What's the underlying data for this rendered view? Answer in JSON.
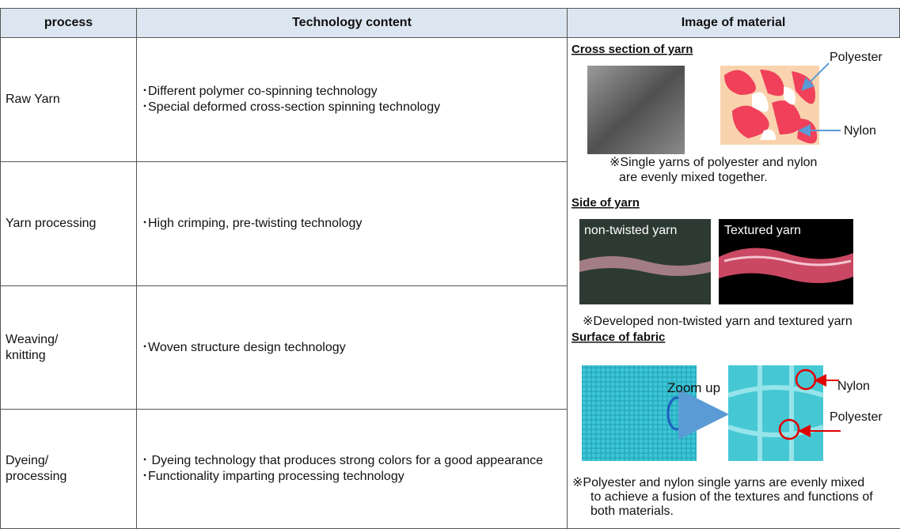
{
  "table": {
    "header": [
      "process",
      "Technology content",
      "Image of material"
    ],
    "rows": [
      {
        "process": [
          "Raw Yarn"
        ],
        "content": [
          "･Different polymer co-spinning technology",
          "･Special deformed cross-section spinning technology"
        ]
      },
      {
        "process": [
          "Yarn processing"
        ],
        "content": [
          "･High crimping, pre-twisting technology"
        ]
      },
      {
        "process": [
          "Weaving/",
          "knitting"
        ],
        "content": [
          "･Woven structure design technology"
        ]
      },
      {
        "process": [
          "Dyeing/",
          "processing"
        ],
        "content": [
          "･ Dyeing technology that produces strong colors for a good appearance",
          "･Functionality imparting processing technology"
        ]
      }
    ]
  },
  "image_panel": {
    "sections": [
      {
        "heading": "Cross section of yarn",
        "labels": [
          "Polyester",
          "Nylon"
        ],
        "note": [
          "※Single yarns of polyester and nylon",
          "are evenly mixed together."
        ]
      },
      {
        "heading": "Side of yarn",
        "labels": [
          "non-twisted yarn",
          "Textured yarn"
        ],
        "note": [
          "※Developed non-twisted yarn and textured yarn"
        ]
      },
      {
        "heading": "Surface of fabric",
        "labels": [
          "Zoom up",
          "Nylon",
          "Polyester"
        ],
        "note": [
          "※Polyester and nylon single yarns are evenly mixed",
          "to achieve a fusion of the textures and functions of",
          "both materials."
        ]
      }
    ]
  }
}
